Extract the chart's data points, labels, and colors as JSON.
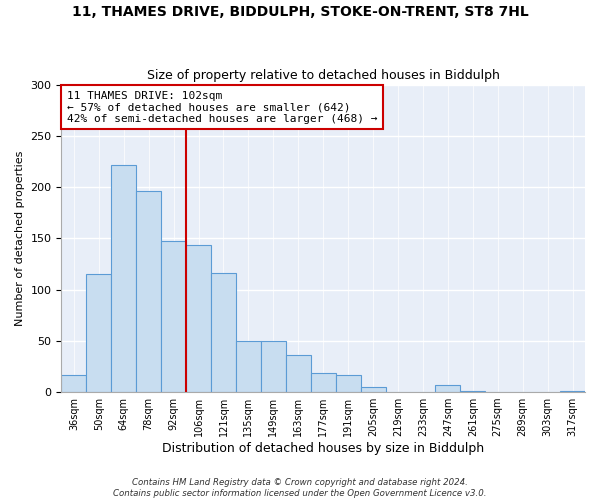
{
  "title1": "11, THAMES DRIVE, BIDDULPH, STOKE-ON-TRENT, ST8 7HL",
  "title2": "Size of property relative to detached houses in Biddulph",
  "xlabel": "Distribution of detached houses by size in Biddulph",
  "ylabel": "Number of detached properties",
  "bar_labels": [
    "36sqm",
    "50sqm",
    "64sqm",
    "78sqm",
    "92sqm",
    "106sqm",
    "121sqm",
    "135sqm",
    "149sqm",
    "163sqm",
    "177sqm",
    "191sqm",
    "205sqm",
    "219sqm",
    "233sqm",
    "247sqm",
    "261sqm",
    "275sqm",
    "289sqm",
    "303sqm",
    "317sqm"
  ],
  "bar_values": [
    17,
    115,
    222,
    196,
    147,
    143,
    116,
    50,
    50,
    36,
    19,
    17,
    5,
    0,
    0,
    7,
    1,
    0,
    0,
    0,
    1
  ],
  "bar_color": "#c8ddf0",
  "bar_edge_color": "#5b9bd5",
  "vline_color": "#cc0000",
  "annotation_title": "11 THAMES DRIVE: 102sqm",
  "annotation_line1": "← 57% of detached houses are smaller (642)",
  "annotation_line2": "42% of semi-detached houses are larger (468) →",
  "annotation_box_color": "white",
  "annotation_box_edge": "#cc0000",
  "ylim": [
    0,
    300
  ],
  "yticks": [
    0,
    50,
    100,
    150,
    200,
    250,
    300
  ],
  "bg_color": "#e8eef8",
  "footnote1": "Contains HM Land Registry data © Crown copyright and database right 2024.",
  "footnote2": "Contains public sector information licensed under the Open Government Licence v3.0."
}
